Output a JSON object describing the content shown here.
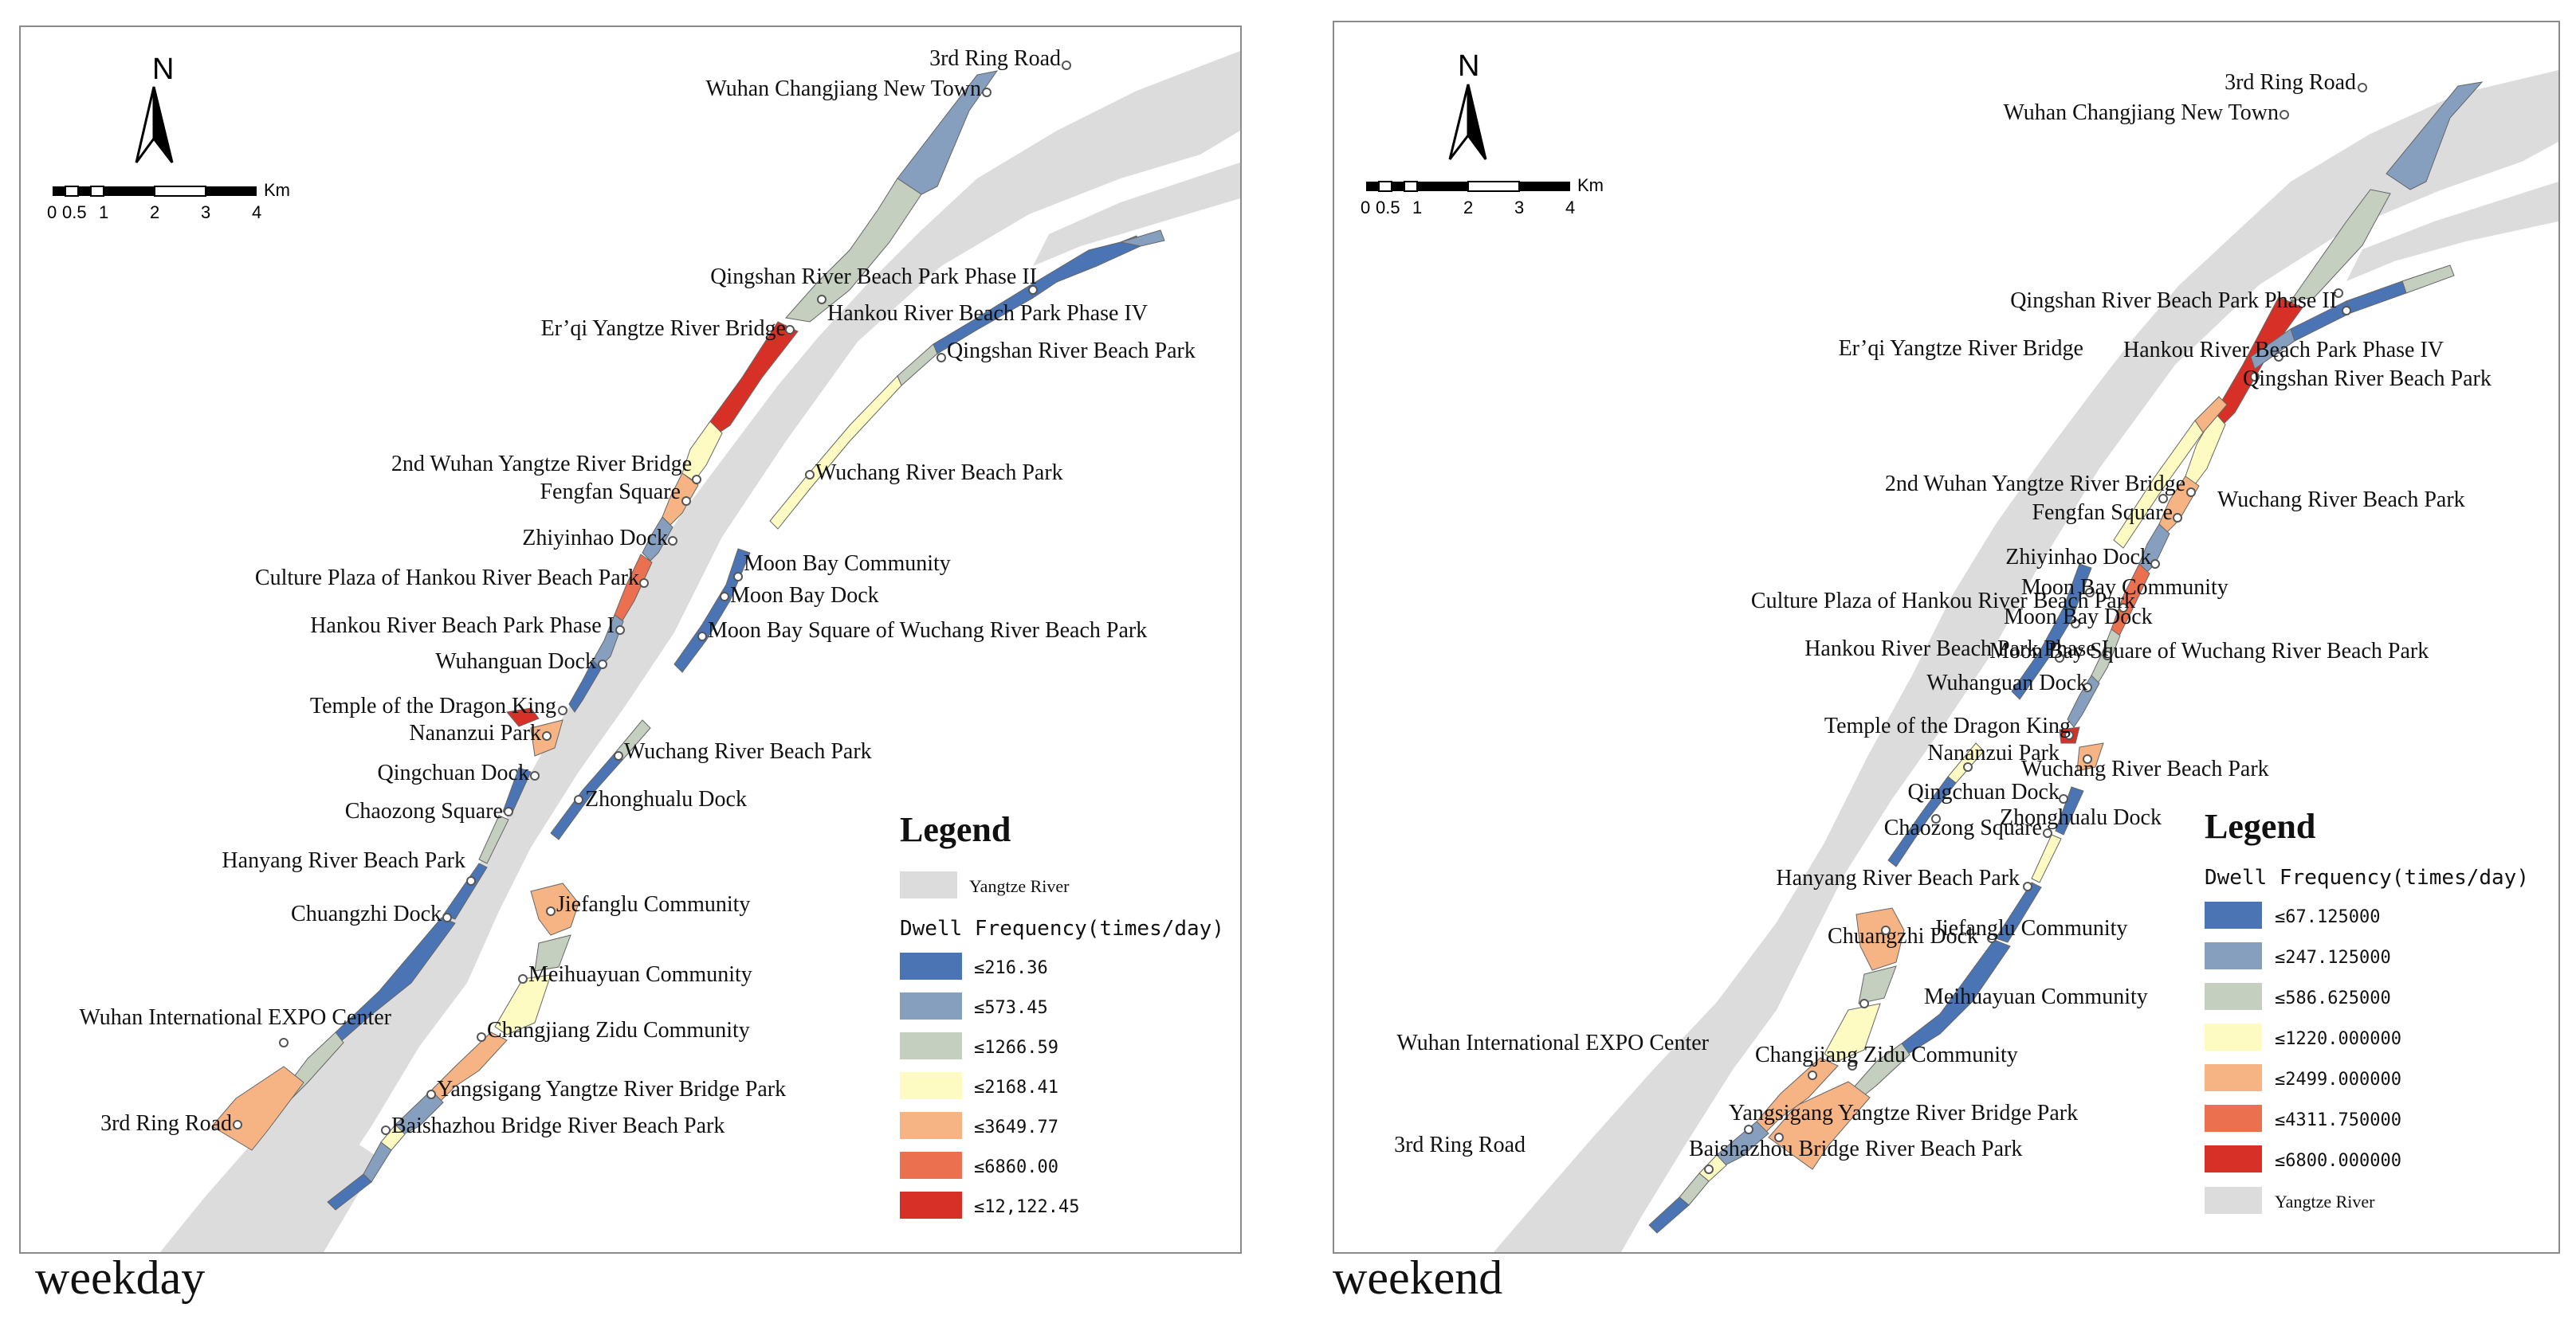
{
  "colors": {
    "river": "#dcdcdc",
    "c1": "#4a74b4",
    "c2": "#869fbf",
    "c3": "#c4cfbf",
    "c4": "#fdfbc2",
    "c5": "#f6b484",
    "c6": "#ea7050",
    "c7": "#d73027"
  },
  "icons": {
    "north_arrow": "north-arrow-icon",
    "poi": "poi-circle-icon"
  },
  "panels": [
    {
      "caption": "weekday",
      "north_label": "N",
      "scale_labels": [
        "0",
        "0.5",
        "1",
        "2",
        "3",
        "4"
      ],
      "scale_unit": "Km",
      "legend": {
        "title": "Legend",
        "river_label": "Yangtze River",
        "subtitle": "Dwell Frequency(times/day)",
        "classes": [
          "≤216.36",
          "≤573.45",
          "≤1266.59",
          "≤2168.41",
          "≤3649.77",
          "≤6860.00",
          "≤12,122.45"
        ]
      },
      "places": [
        "3rd Ring Road",
        "Wuhan Changjiang New Town",
        "Qingshan River Beach Park Phase II",
        "Hankou River Beach Park Phase IV",
        "Er’qi Yangtze River Bridge",
        "Qingshan River Beach Park",
        "2nd Wuhan Yangtze River Bridge",
        "Wuchang River Beach Park",
        "Fengfan Square",
        "Zhiyinhao Dock",
        "Moon Bay Community",
        "Culture Plaza of Hankou River Beach Park",
        "Moon Bay Dock",
        "Hankou River Beach Park Phase I",
        "Moon Bay Square of Wuchang River Beach Park",
        "Wuhanguan Dock",
        "Temple of the Dragon King",
        "Nananzui Park",
        "Wuchang River Beach Park",
        "Qingchuan Dock",
        "Zhonghualu Dock",
        "Chaozong Square",
        "Hanyang River Beach Park",
        "Jiefanglu Community",
        "Chuangzhi Dock",
        "Meihuayuan Community",
        "Wuhan International EXPO Center",
        "Changjiang Zidu Community",
        "Yangsigang Yangtze River Bridge Park",
        "3rd Ring Road",
        "Baishazhou Bridge River Beach Park"
      ]
    },
    {
      "caption": "weekend",
      "north_label": "N",
      "scale_labels": [
        "0",
        "0.5",
        "1",
        "2",
        "3",
        "4"
      ],
      "scale_unit": "Km",
      "legend": {
        "title": "Legend",
        "river_label": "Yangtze River",
        "subtitle": "Dwell Frequency(times/day)",
        "classes": [
          "≤67.125000",
          "≤247.125000",
          "≤586.625000",
          "≤1220.000000",
          "≤2499.000000",
          "≤4311.750000",
          "≤6800.000000"
        ]
      },
      "places": [
        "3rd Ring Road",
        "Wuhan Changjiang New Town",
        "Qingshan River Beach Park Phase II",
        "Er’qi Yangtze River Bridge",
        "Hankou River Beach Park Phase IV",
        "Qingshan River Beach Park",
        "2nd Wuhan Yangtze River Bridge",
        "Wuchang River Beach Park",
        "Fengfan Square",
        "Zhiyinhao Dock",
        "Moon Bay Community",
        "Culture Plaza of Hankou River Beach Park",
        "Moon Bay Dock",
        "Hankou River Beach Park Phase I",
        "Moon Bay Square of Wuchang River Beach Park",
        "Wuhanguan Dock",
        "Temple of the Dragon King",
        "Nananzui Park",
        "Wuchang River Beach Park",
        "Qingchuan Dock",
        "Zhonghualu Dock",
        "Chaozong Square",
        "Hanyang River Beach Park",
        "Chuangzhi Dock",
        "Jiefanglu Community",
        "Meihuayuan Community",
        "Wuhan International EXPO Center",
        "Changjiang Zidu Community",
        "3rd Ring Road",
        "Yangsigang Yangtze River Bridge Park",
        "Baishazhou Bridge River Beach Park"
      ]
    }
  ]
}
